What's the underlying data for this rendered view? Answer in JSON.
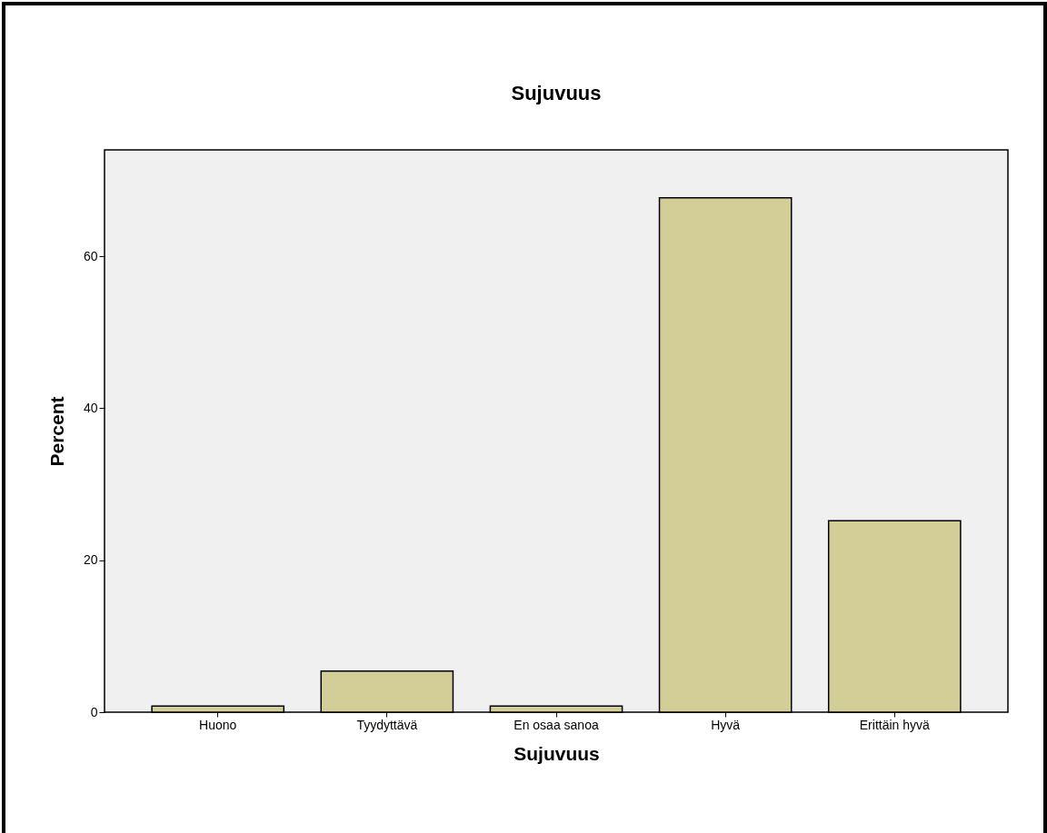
{
  "chart_data": {
    "type": "bar",
    "title": "Sujuvuus",
    "xlabel": "Sujuvuus",
    "ylabel": "Percent",
    "categories": [
      "Huono",
      "Tyydyttävä",
      "En osaa sanoa",
      "Hyvä",
      "Erittäin hyvä"
    ],
    "values": [
      0.8,
      5.4,
      0.8,
      67.7,
      25.2
    ],
    "color": "#d3ce97",
    "ylim": [
      0,
      74
    ],
    "yticks": [
      0,
      20,
      40,
      60
    ],
    "grid": false
  }
}
